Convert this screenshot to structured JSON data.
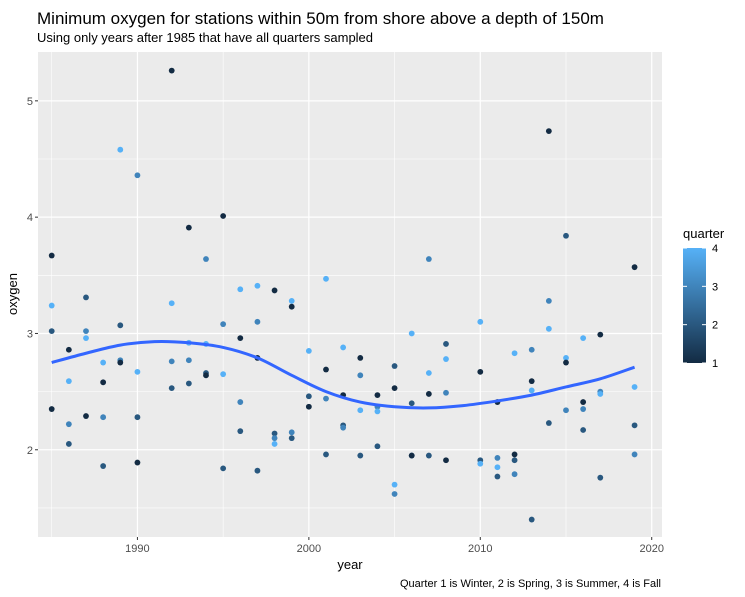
{
  "chart_data": {
    "type": "scatter",
    "title": "Minimum oxygen for stations within 50m from shore above a depth of 150m",
    "subtitle": "Using only years after 1985 that have all quarters sampled",
    "xlabel": "year",
    "ylabel": "oxygen",
    "caption": "Quarter 1 is Winter, 2 is Spring, 3 is Summer, 4 is Fall",
    "xlim": [
      1984.2,
      2020.6
    ],
    "ylim": [
      1.25,
      5.42
    ],
    "x_ticks": [
      1990,
      2000,
      2010,
      2020
    ],
    "y_ticks": [
      2,
      3,
      4,
      5
    ],
    "x_tick_labels": [
      "1990",
      "2000",
      "2010",
      "2020"
    ],
    "y_tick_labels": [
      "2",
      "3",
      "4",
      "5"
    ],
    "grid": true,
    "legend": {
      "title": "quarter",
      "position": "right",
      "ticks": [
        1,
        2,
        3,
        4
      ],
      "tick_labels": [
        "1",
        "2",
        "3",
        "4"
      ],
      "colors": {
        "low": "#132b43",
        "high": "#56b1f7"
      }
    },
    "color_scale": {
      "min": 1,
      "max": 4,
      "low": "#132b43",
      "high": "#56b1f7"
    },
    "trend_color": "#3366ff",
    "points": [
      {
        "x": 1985,
        "y": 3.67,
        "q": 1
      },
      {
        "x": 1985,
        "y": 3.24,
        "q": 4
      },
      {
        "x": 1985,
        "y": 3.02,
        "q": 2
      },
      {
        "x": 1985,
        "y": 2.35,
        "q": 1
      },
      {
        "x": 1986,
        "y": 2.86,
        "q": 1
      },
      {
        "x": 1986,
        "y": 2.59,
        "q": 4
      },
      {
        "x": 1986,
        "y": 2.22,
        "q": 3
      },
      {
        "x": 1986,
        "y": 2.05,
        "q": 2
      },
      {
        "x": 1987,
        "y": 3.31,
        "q": 2
      },
      {
        "x": 1987,
        "y": 3.02,
        "q": 3
      },
      {
        "x": 1987,
        "y": 2.96,
        "q": 4
      },
      {
        "x": 1987,
        "y": 2.29,
        "q": 1
      },
      {
        "x": 1988,
        "y": 2.75,
        "q": 4
      },
      {
        "x": 1988,
        "y": 2.58,
        "q": 1
      },
      {
        "x": 1988,
        "y": 2.28,
        "q": 3
      },
      {
        "x": 1988,
        "y": 1.86,
        "q": 2
      },
      {
        "x": 1989,
        "y": 4.58,
        "q": 4
      },
      {
        "x": 1989,
        "y": 3.07,
        "q": 2
      },
      {
        "x": 1989,
        "y": 2.77,
        "q": 3
      },
      {
        "x": 1989,
        "y": 2.75,
        "q": 1
      },
      {
        "x": 1990,
        "y": 4.36,
        "q": 3
      },
      {
        "x": 1990,
        "y": 2.67,
        "q": 4
      },
      {
        "x": 1990,
        "y": 2.28,
        "q": 2
      },
      {
        "x": 1990,
        "y": 1.89,
        "q": 1
      },
      {
        "x": 1992,
        "y": 5.26,
        "q": 1
      },
      {
        "x": 1992,
        "y": 3.26,
        "q": 4
      },
      {
        "x": 1992,
        "y": 2.76,
        "q": 3
      },
      {
        "x": 1992,
        "y": 2.53,
        "q": 2
      },
      {
        "x": 1993,
        "y": 3.91,
        "q": 1
      },
      {
        "x": 1993,
        "y": 2.92,
        "q": 4
      },
      {
        "x": 1993,
        "y": 2.77,
        "q": 3
      },
      {
        "x": 1993,
        "y": 2.57,
        "q": 2
      },
      {
        "x": 1994,
        "y": 3.64,
        "q": 3
      },
      {
        "x": 1994,
        "y": 2.91,
        "q": 4
      },
      {
        "x": 1994,
        "y": 2.66,
        "q": 2
      },
      {
        "x": 1994,
        "y": 2.64,
        "q": 1
      },
      {
        "x": 1995,
        "y": 4.01,
        "q": 1
      },
      {
        "x": 1995,
        "y": 3.08,
        "q": 3
      },
      {
        "x": 1995,
        "y": 2.65,
        "q": 4
      },
      {
        "x": 1995,
        "y": 1.84,
        "q": 2
      },
      {
        "x": 1996,
        "y": 3.38,
        "q": 4
      },
      {
        "x": 1996,
        "y": 2.96,
        "q": 1
      },
      {
        "x": 1996,
        "y": 2.41,
        "q": 3
      },
      {
        "x": 1996,
        "y": 2.16,
        "q": 2
      },
      {
        "x": 1997,
        "y": 3.41,
        "q": 4
      },
      {
        "x": 1997,
        "y": 3.1,
        "q": 3
      },
      {
        "x": 1997,
        "y": 2.79,
        "q": 1
      },
      {
        "x": 1997,
        "y": 1.82,
        "q": 2
      },
      {
        "x": 1998,
        "y": 3.37,
        "q": 1
      },
      {
        "x": 1998,
        "y": 2.14,
        "q": 2
      },
      {
        "x": 1998,
        "y": 2.1,
        "q": 3
      },
      {
        "x": 1998,
        "y": 2.05,
        "q": 4
      },
      {
        "x": 1999,
        "y": 3.28,
        "q": 4
      },
      {
        "x": 1999,
        "y": 3.23,
        "q": 1
      },
      {
        "x": 1999,
        "y": 2.15,
        "q": 3
      },
      {
        "x": 1999,
        "y": 2.1,
        "q": 2
      },
      {
        "x": 2000,
        "y": 2.85,
        "q": 4
      },
      {
        "x": 2000,
        "y": 2.46,
        "q": 2
      },
      {
        "x": 2000,
        "y": 2.37,
        "q": 1
      },
      {
        "x": 2001,
        "y": 2.69,
        "q": 1
      },
      {
        "x": 2001,
        "y": 2.44,
        "q": 3
      },
      {
        "x": 2001,
        "y": 1.96,
        "q": 2
      },
      {
        "x": 2001,
        "y": 3.47,
        "q": 4
      },
      {
        "x": 2002,
        "y": 2.88,
        "q": 4
      },
      {
        "x": 2002,
        "y": 2.47,
        "q": 1
      },
      {
        "x": 2002,
        "y": 2.21,
        "q": 2
      },
      {
        "x": 2002,
        "y": 2.19,
        "q": 3
      },
      {
        "x": 2003,
        "y": 2.79,
        "q": 1
      },
      {
        "x": 2003,
        "y": 2.64,
        "q": 3
      },
      {
        "x": 2003,
        "y": 2.34,
        "q": 4
      },
      {
        "x": 2003,
        "y": 1.95,
        "q": 2
      },
      {
        "x": 2004,
        "y": 2.47,
        "q": 1
      },
      {
        "x": 2004,
        "y": 2.37,
        "q": 3
      },
      {
        "x": 2004,
        "y": 2.33,
        "q": 4
      },
      {
        "x": 2004,
        "y": 2.03,
        "q": 2
      },
      {
        "x": 2005,
        "y": 2.72,
        "q": 2
      },
      {
        "x": 2005,
        "y": 2.53,
        "q": 1
      },
      {
        "x": 2005,
        "y": 1.7,
        "q": 4
      },
      {
        "x": 2005,
        "y": 1.62,
        "q": 3
      },
      {
        "x": 2006,
        "y": 3.0,
        "q": 4
      },
      {
        "x": 2006,
        "y": 2.4,
        "q": 2
      },
      {
        "x": 2006,
        "y": 1.95,
        "q": 3
      },
      {
        "x": 2006,
        "y": 1.95,
        "q": 1
      },
      {
        "x": 2007,
        "y": 3.64,
        "q": 3
      },
      {
        "x": 2007,
        "y": 2.66,
        "q": 4
      },
      {
        "x": 2007,
        "y": 2.48,
        "q": 1
      },
      {
        "x": 2007,
        "y": 1.95,
        "q": 2
      },
      {
        "x": 2008,
        "y": 2.91,
        "q": 2
      },
      {
        "x": 2008,
        "y": 2.78,
        "q": 4
      },
      {
        "x": 2008,
        "y": 2.49,
        "q": 3
      },
      {
        "x": 2008,
        "y": 1.91,
        "q": 1
      },
      {
        "x": 2010,
        "y": 3.1,
        "q": 4
      },
      {
        "x": 2010,
        "y": 2.67,
        "q": 1
      },
      {
        "x": 2010,
        "y": 1.91,
        "q": 2
      },
      {
        "x": 2010,
        "y": 1.88,
        "q": 4
      },
      {
        "x": 2011,
        "y": 2.41,
        "q": 1
      },
      {
        "x": 2011,
        "y": 1.93,
        "q": 3
      },
      {
        "x": 2011,
        "y": 1.85,
        "q": 4
      },
      {
        "x": 2011,
        "y": 1.77,
        "q": 2
      },
      {
        "x": 2012,
        "y": 2.83,
        "q": 4
      },
      {
        "x": 2012,
        "y": 1.96,
        "q": 1
      },
      {
        "x": 2012,
        "y": 1.91,
        "q": 2
      },
      {
        "x": 2012,
        "y": 1.79,
        "q": 3
      },
      {
        "x": 2013,
        "y": 2.86,
        "q": 3
      },
      {
        "x": 2013,
        "y": 2.59,
        "q": 1
      },
      {
        "x": 2013,
        "y": 2.51,
        "q": 4
      },
      {
        "x": 2013,
        "y": 1.4,
        "q": 2
      },
      {
        "x": 2014,
        "y": 4.74,
        "q": 1
      },
      {
        "x": 2014,
        "y": 3.28,
        "q": 3
      },
      {
        "x": 2014,
        "y": 3.04,
        "q": 4
      },
      {
        "x": 2014,
        "y": 2.23,
        "q": 2
      },
      {
        "x": 2015,
        "y": 3.84,
        "q": 2
      },
      {
        "x": 2015,
        "y": 2.79,
        "q": 4
      },
      {
        "x": 2015,
        "y": 2.75,
        "q": 1
      },
      {
        "x": 2015,
        "y": 2.34,
        "q": 3
      },
      {
        "x": 2016,
        "y": 2.96,
        "q": 4
      },
      {
        "x": 2016,
        "y": 2.41,
        "q": 1
      },
      {
        "x": 2016,
        "y": 2.35,
        "q": 3
      },
      {
        "x": 2016,
        "y": 2.17,
        "q": 2
      },
      {
        "x": 2017,
        "y": 2.99,
        "q": 1
      },
      {
        "x": 2017,
        "y": 2.5,
        "q": 3
      },
      {
        "x": 2017,
        "y": 2.48,
        "q": 4
      },
      {
        "x": 2017,
        "y": 1.76,
        "q": 2
      },
      {
        "x": 2019,
        "y": 3.57,
        "q": 1
      },
      {
        "x": 2019,
        "y": 2.54,
        "q": 4
      },
      {
        "x": 2019,
        "y": 2.21,
        "q": 2
      },
      {
        "x": 2019,
        "y": 1.96,
        "q": 3
      }
    ],
    "smooth": [
      {
        "x": 1985,
        "y": 2.75
      },
      {
        "x": 1987,
        "y": 2.83
      },
      {
        "x": 1989,
        "y": 2.9
      },
      {
        "x": 1991,
        "y": 2.93
      },
      {
        "x": 1993,
        "y": 2.92
      },
      {
        "x": 1995,
        "y": 2.88
      },
      {
        "x": 1997,
        "y": 2.79
      },
      {
        "x": 1999,
        "y": 2.64
      },
      {
        "x": 2001,
        "y": 2.5
      },
      {
        "x": 2003,
        "y": 2.41
      },
      {
        "x": 2005,
        "y": 2.37
      },
      {
        "x": 2007,
        "y": 2.36
      },
      {
        "x": 2009,
        "y": 2.38
      },
      {
        "x": 2011,
        "y": 2.42
      },
      {
        "x": 2013,
        "y": 2.47
      },
      {
        "x": 2015,
        "y": 2.54
      },
      {
        "x": 2017,
        "y": 2.61
      },
      {
        "x": 2019,
        "y": 2.71
      }
    ]
  }
}
